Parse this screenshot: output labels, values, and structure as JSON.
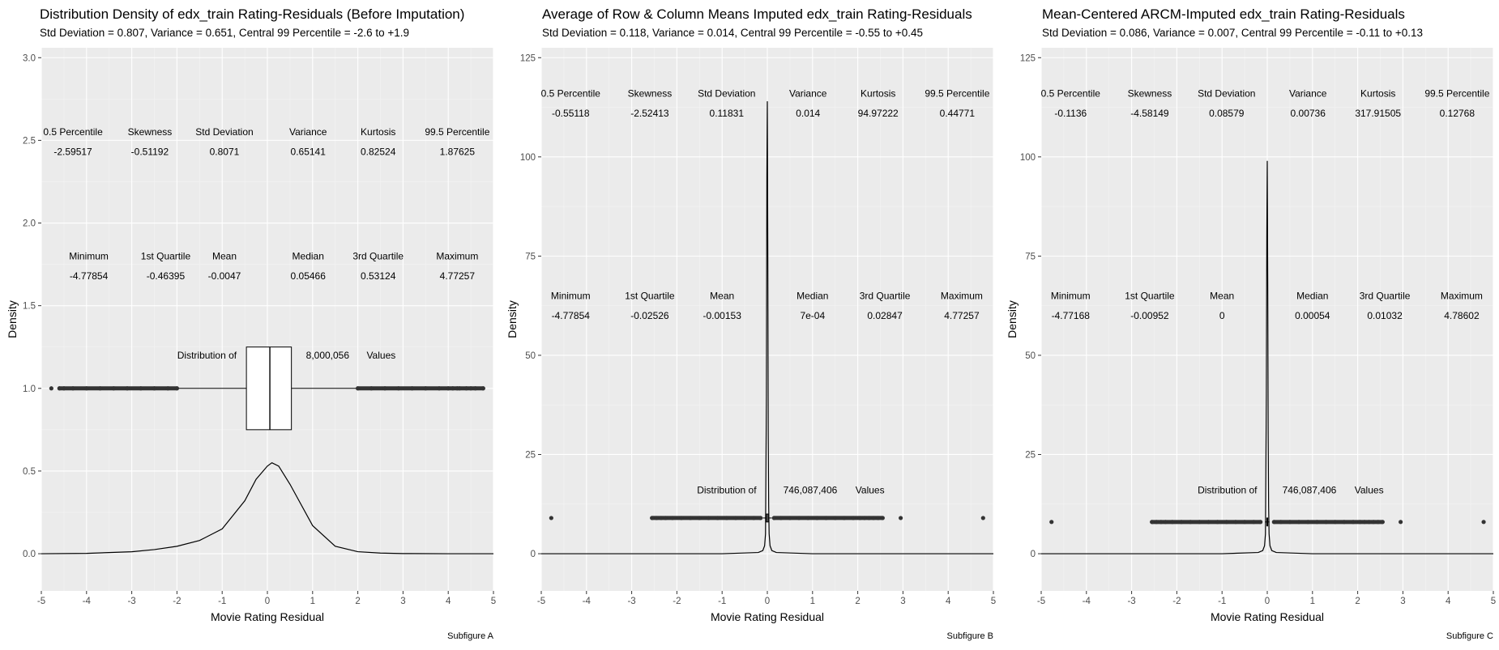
{
  "chart_data": [
    {
      "type": "density",
      "title": "Distribution Density of edx_train Rating-Residuals (Before Imputation)",
      "subtitle": "Std Deviation = 0.807, Variance = 0.651, Central 99 Percentile = -2.6 to +1.9",
      "xlabel": "Movie Rating Residual",
      "ylabel": "Density",
      "caption": "Subfigure A",
      "xlim": [
        -5,
        5
      ],
      "ylim": [
        0,
        3
      ],
      "yticks": [
        0,
        0.5,
        1,
        1.5,
        2,
        2.5,
        3
      ],
      "ytick_labels": [
        "0.0",
        "0.5",
        "1.0",
        "1.5",
        "2.0",
        "2.5",
        "3.0"
      ],
      "xticks": [
        -5,
        -4,
        -3,
        -2,
        -1,
        0,
        1,
        2,
        3,
        4,
        5
      ],
      "density": {
        "x": [
          -5,
          -4,
          -3,
          -2.5,
          -2,
          -1.5,
          -1,
          -0.5,
          -0.25,
          0,
          0.1,
          0.25,
          0.5,
          1,
          1.5,
          2,
          2.5,
          3,
          4,
          5
        ],
        "y": [
          0.0,
          0.002,
          0.012,
          0.025,
          0.045,
          0.08,
          0.15,
          0.32,
          0.45,
          0.53,
          0.55,
          0.53,
          0.42,
          0.17,
          0.045,
          0.012,
          0.004,
          0.001,
          0.0,
          0.0
        ]
      },
      "boxplot": {
        "y": 1.0,
        "box_bottom": 0.75,
        "box_top": 1.25,
        "q1": -0.46395,
        "median": 0.05466,
        "q3": 0.53124,
        "whisker_low": -2.0,
        "whisker_high": 2.0,
        "outliers_low": [
          -4.77854,
          -4.6,
          -4.5,
          -4.3,
          -4.0,
          -3.7,
          -3.4,
          -3.1,
          -2.8,
          -2.5,
          -2.2,
          -2.0
        ],
        "outliers_high": [
          2.0,
          2.3,
          2.6,
          2.9,
          3.2,
          3.5,
          3.8,
          4.0,
          4.1,
          4.2,
          4.25,
          4.4,
          4.5,
          4.6,
          4.77257
        ]
      },
      "dist_label": {
        "prefix": "Distribution of",
        "count": "8,000,056",
        "suffix": "Values",
        "y": 1.2
      },
      "stat_rows": [
        {
          "label_y": 2.55,
          "value_y": 2.43,
          "cells": [
            {
              "x": -4.3,
              "label": "0.5 Percentile",
              "value": "-2.59517"
            },
            {
              "x": -2.6,
              "label": "Skewness",
              "value": "-0.51192"
            },
            {
              "x": -0.95,
              "label": "Std Deviation",
              "value": "0.8071"
            },
            {
              "x": 0.9,
              "label": "Variance",
              "value": "0.65141"
            },
            {
              "x": 2.45,
              "label": "Kurtosis",
              "value": "0.82524"
            },
            {
              "x": 4.2,
              "label": "99.5 Percentile",
              "value": "1.87625"
            }
          ]
        },
        {
          "label_y": 1.8,
          "value_y": 1.68,
          "cells": [
            {
              "x": -3.95,
              "label": "Minimum",
              "value": "-4.77854"
            },
            {
              "x": -2.25,
              "label": "1st Quartile",
              "value": "-0.46395"
            },
            {
              "x": -0.95,
              "label": "Mean",
              "value": "-0.0047"
            },
            {
              "x": 0.9,
              "label": "Median",
              "value": "0.05466"
            },
            {
              "x": 2.45,
              "label": "3rd Quartile",
              "value": "0.53124"
            },
            {
              "x": 4.2,
              "label": "Maximum",
              "value": "4.77257"
            }
          ]
        }
      ]
    },
    {
      "type": "density",
      "title": "Average of Row & Column Means Imputed edx_train Rating-Residuals",
      "subtitle": "Std Deviation = 0.118, Variance = 0.014, Central 99 Percentile = -0.55 to +0.45",
      "xlabel": "Movie Rating Residual",
      "ylabel": "Density",
      "caption": "Subfigure B",
      "xlim": [
        -5,
        5
      ],
      "ylim": [
        0,
        125
      ],
      "yticks": [
        0,
        25,
        50,
        75,
        100,
        125
      ],
      "ytick_labels": [
        "0",
        "25",
        "50",
        "75",
        "100",
        "125"
      ],
      "xticks": [
        -5,
        -4,
        -3,
        -2,
        -1,
        0,
        1,
        2,
        3,
        4,
        5
      ],
      "density": {
        "x": [
          -5,
          -1,
          -0.2,
          -0.1,
          -0.06,
          -0.04,
          -0.02,
          -0.01,
          0.0,
          0.01,
          0.02,
          0.03,
          0.04,
          0.06,
          0.1,
          0.2,
          1,
          5
        ],
        "y": [
          0,
          0,
          0.3,
          0.8,
          2,
          5,
          40,
          95,
          114,
          78,
          30,
          12,
          5,
          2,
          0.8,
          0.3,
          0,
          0
        ]
      },
      "boxplot": {
        "y": 9.0,
        "box_bottom": 8.0,
        "box_top": 10.0,
        "q1": -0.02526,
        "median": 0.0007,
        "q3": 0.02847,
        "whisker_low": -0.1,
        "whisker_high": 0.1,
        "outliers_low": [
          -4.77854,
          -2.55,
          -2.45,
          -2.35,
          -2.25,
          -2.1,
          -1.9,
          -1.7,
          -1.5,
          -1.3,
          -1.1,
          -0.9,
          -0.7,
          -0.5,
          -0.3,
          -0.15
        ],
        "outliers_high": [
          0.15,
          0.3,
          0.5,
          0.7,
          0.9,
          1.1,
          1.3,
          1.5,
          1.7,
          1.9,
          2.05,
          2.15,
          2.25,
          2.35,
          2.45,
          2.55,
          2.95,
          4.77257
        ]
      },
      "dist_label": {
        "prefix": "Distribution of",
        "count": "746,087,406",
        "suffix": "Values",
        "y": 16
      },
      "stat_rows": [
        {
          "label_y": 116,
          "value_y": 111,
          "cells": [
            {
              "x": -4.35,
              "label": "0.5 Percentile",
              "value": "-0.55118"
            },
            {
              "x": -2.6,
              "label": "Skewness",
              "value": "-2.52413"
            },
            {
              "x": -0.9,
              "label": "Std Deviation",
              "value": "0.11831"
            },
            {
              "x": 0.9,
              "label": "Variance",
              "value": "0.014"
            },
            {
              "x": 2.45,
              "label": "Kurtosis",
              "value": "94.97222"
            },
            {
              "x": 4.2,
              "label": "99.5 Percentile",
              "value": "0.44771"
            }
          ]
        },
        {
          "label_y": 65,
          "value_y": 60,
          "cells": [
            {
              "x": -4.35,
              "label": "Minimum",
              "value": "-4.77854"
            },
            {
              "x": -2.6,
              "label": "1st Quartile",
              "value": "-0.02526"
            },
            {
              "x": -1.0,
              "label": "Mean",
              "value": "-0.00153"
            },
            {
              "x": 1.0,
              "label": "Median",
              "value": "7e-04"
            },
            {
              "x": 2.6,
              "label": "3rd Quartile",
              "value": "0.02847"
            },
            {
              "x": 4.3,
              "label": "Maximum",
              "value": "4.77257"
            }
          ]
        }
      ]
    },
    {
      "type": "density",
      "title": "Mean-Centered ARCM-Imputed edx_train Rating-Residuals",
      "subtitle": "Std Deviation = 0.086, Variance = 0.007, Central 99 Percentile = -0.11 to +0.13",
      "xlabel": "Movie Rating Residual",
      "ylabel": "Density",
      "caption": "Subfigure C",
      "xlim": [
        -5,
        5
      ],
      "ylim": [
        0,
        125
      ],
      "yticks": [
        0,
        25,
        50,
        75,
        100,
        125
      ],
      "ytick_labels": [
        "0",
        "25",
        "50",
        "75",
        "100",
        "125"
      ],
      "xticks": [
        -5,
        -4,
        -3,
        -2,
        -1,
        0,
        1,
        2,
        3,
        4,
        5
      ],
      "density": {
        "x": [
          -5,
          -1,
          -0.2,
          -0.1,
          -0.06,
          -0.04,
          -0.02,
          -0.01,
          0.0,
          0.01,
          0.02,
          0.03,
          0.04,
          0.06,
          0.1,
          0.2,
          1,
          5
        ],
        "y": [
          0,
          0,
          0.3,
          0.8,
          2,
          5,
          40,
          80,
          99,
          70,
          30,
          12,
          5,
          2,
          0.8,
          0.3,
          0,
          0
        ]
      },
      "boxplot": {
        "y": 8.0,
        "box_bottom": 7.0,
        "box_top": 9.0,
        "q1": -0.00952,
        "median": 0.00054,
        "q3": 0.01032,
        "whisker_low": -0.05,
        "whisker_high": 0.05,
        "outliers_low": [
          -4.77168,
          -2.55,
          -2.45,
          -2.35,
          -2.25,
          -2.1,
          -1.9,
          -1.7,
          -1.5,
          -1.3,
          -1.1,
          -0.9,
          -0.7,
          -0.5,
          -0.3,
          -0.15
        ],
        "outliers_high": [
          0.15,
          0.3,
          0.5,
          0.7,
          0.9,
          1.1,
          1.3,
          1.5,
          1.7,
          1.9,
          2.05,
          2.15,
          2.25,
          2.35,
          2.45,
          2.55,
          2.95,
          4.78602
        ]
      },
      "dist_label": {
        "prefix": "Distribution of",
        "count": "746,087,406",
        "suffix": "Values",
        "y": 16
      },
      "stat_rows": [
        {
          "label_y": 116,
          "value_y": 111,
          "cells": [
            {
              "x": -4.35,
              "label": "0.5 Percentile",
              "value": "-0.1136"
            },
            {
              "x": -2.6,
              "label": "Skewness",
              "value": "-4.58149"
            },
            {
              "x": -0.9,
              "label": "Std Deviation",
              "value": "0.08579"
            },
            {
              "x": 0.9,
              "label": "Variance",
              "value": "0.00736"
            },
            {
              "x": 2.45,
              "label": "Kurtosis",
              "value": "317.91505"
            },
            {
              "x": 4.2,
              "label": "99.5 Percentile",
              "value": "0.12768"
            }
          ]
        },
        {
          "label_y": 65,
          "value_y": 60,
          "cells": [
            {
              "x": -4.35,
              "label": "Minimum",
              "value": "-4.77168"
            },
            {
              "x": -2.6,
              "label": "1st Quartile",
              "value": "-0.00952"
            },
            {
              "x": -1.0,
              "label": "Mean",
              "value": "0"
            },
            {
              "x": 1.0,
              "label": "Median",
              "value": "0.00054"
            },
            {
              "x": 2.6,
              "label": "3rd Quartile",
              "value": "0.01032"
            },
            {
              "x": 4.3,
              "label": "Maximum",
              "value": "4.78602"
            }
          ]
        }
      ]
    }
  ],
  "colors": {
    "panel_bg": "#ebebeb",
    "grid_major": "#ffffff",
    "grid_minor": "#f4f4f4",
    "ink": "#000000",
    "tick_text": "#4d4d4d",
    "box_fill": "#ffffff",
    "point": "#333333"
  }
}
